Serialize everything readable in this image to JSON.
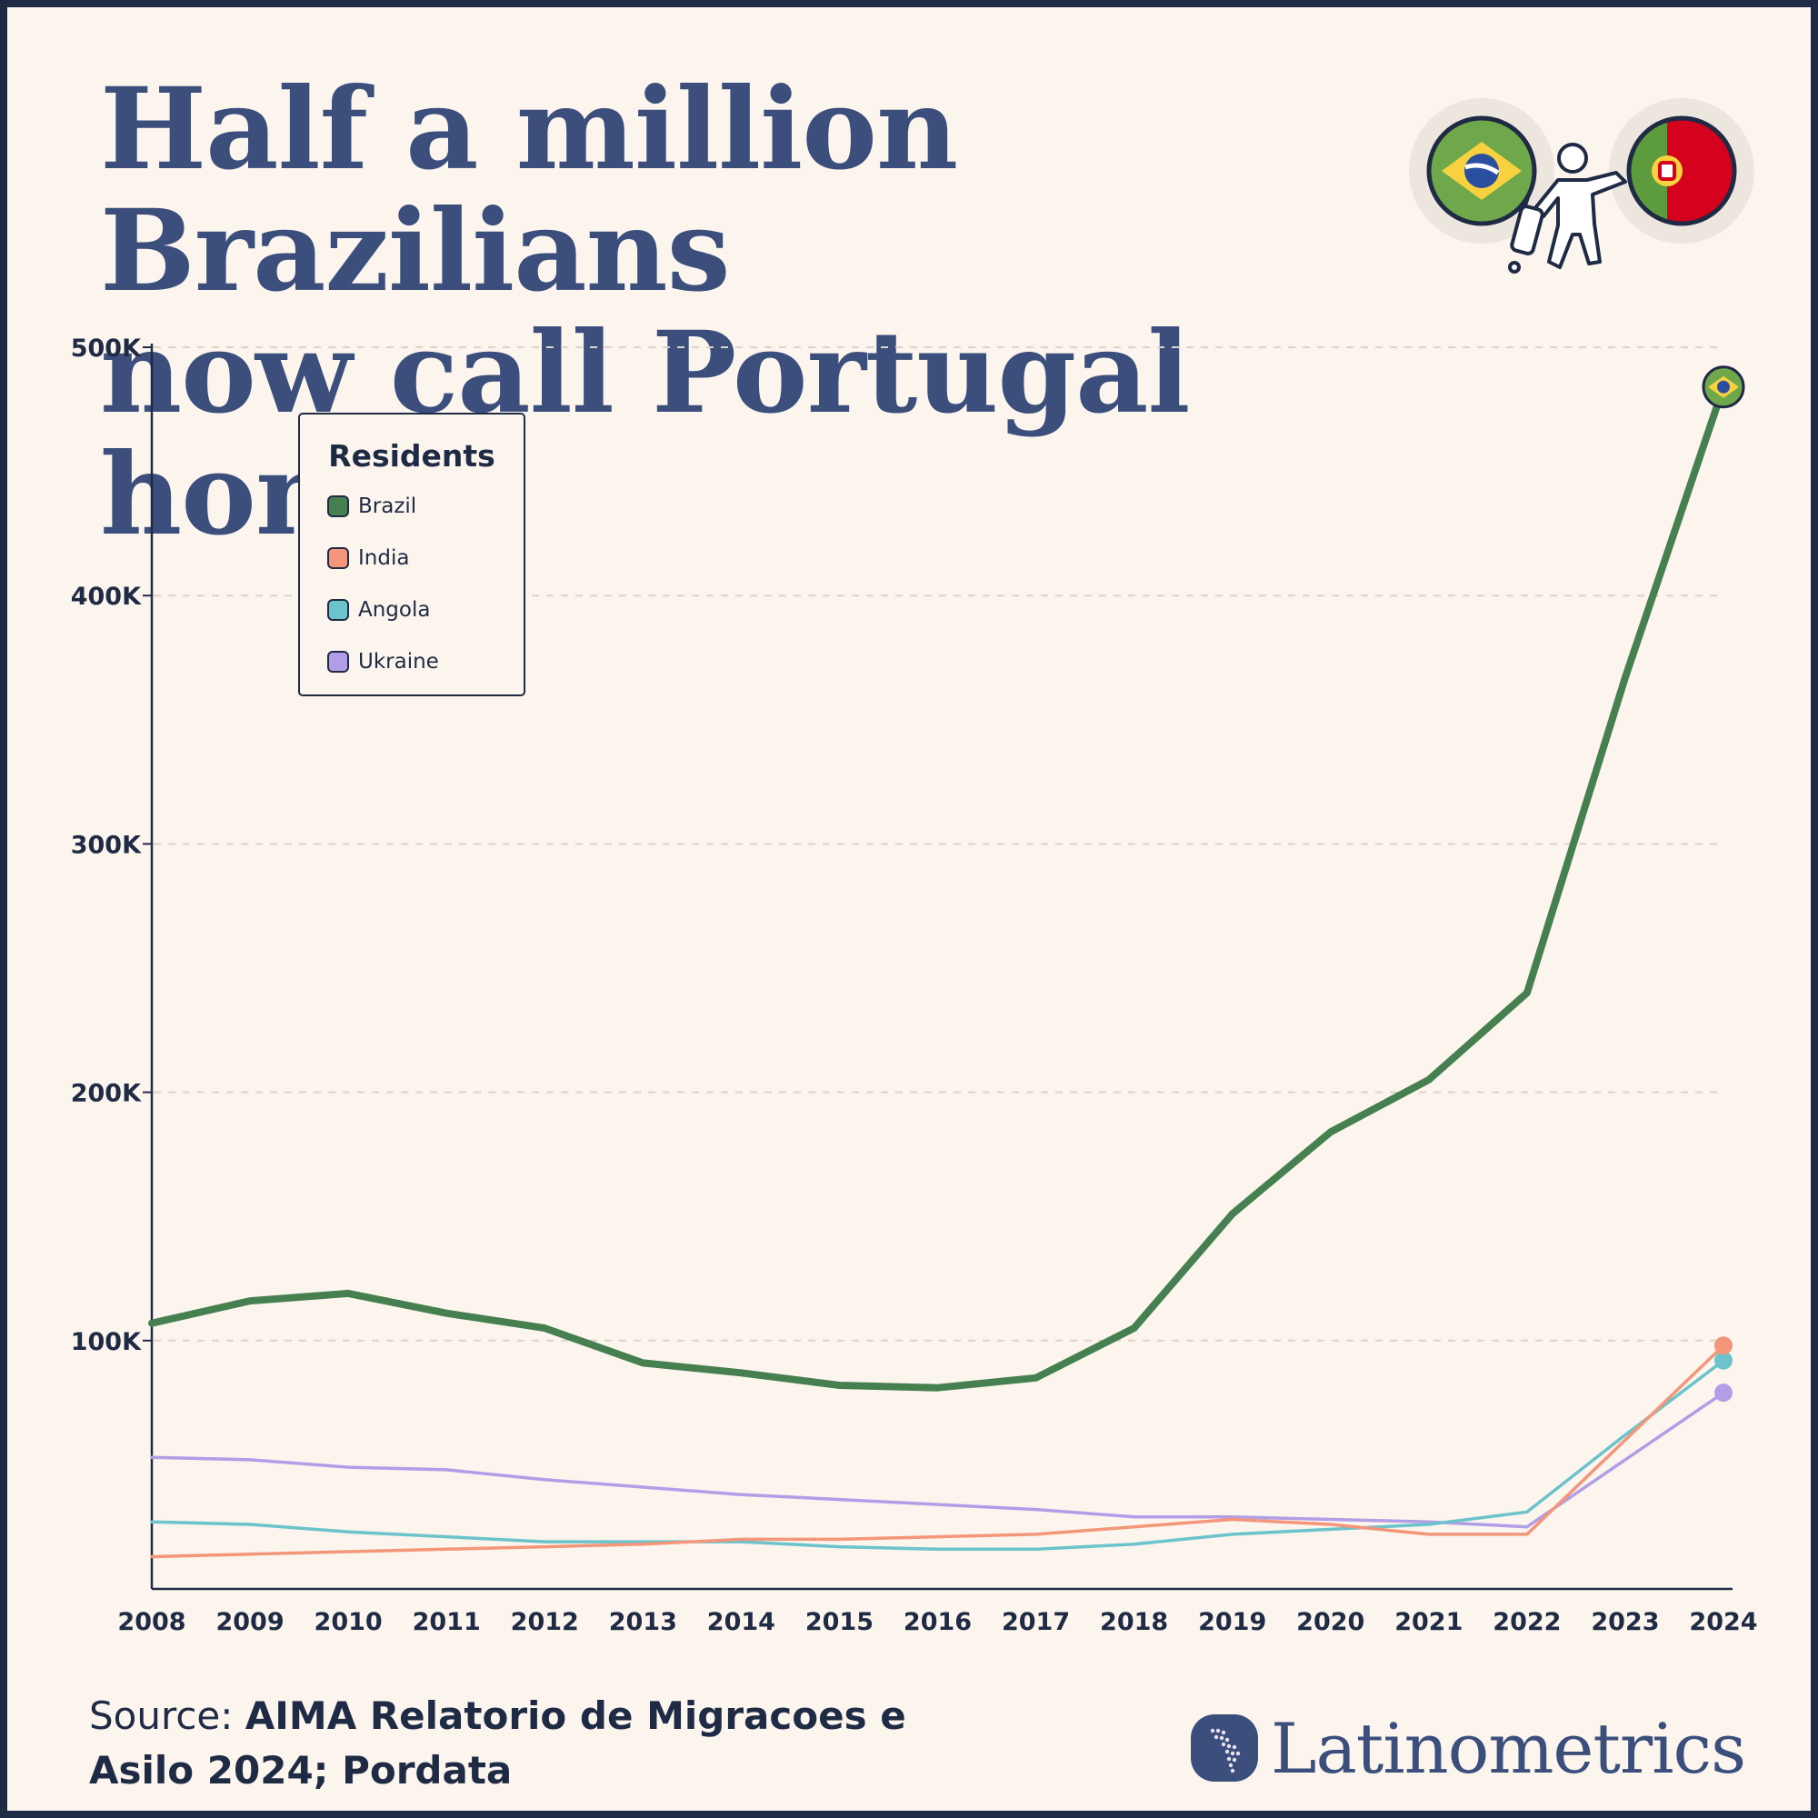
{
  "title_line1": "Half a million Brazilians",
  "title_line2": "now call Portugal home",
  "legend_title": "Residents",
  "source_prefix": "Source: ",
  "source_body": "AIMA Relatorio de Migracoes e Asilo 2024; Pordata",
  "brand": "Latinometrics",
  "icons": [
    "brazil-flag-icon",
    "traveler-icon",
    "portugal-flag-icon",
    "latinometrics-logo-icon"
  ],
  "colors": {
    "Brazil": "#478050",
    "India": "#f4967a",
    "Angola": "#6cc3cb",
    "Ukraine": "#b19ee6",
    "title": "#3b4e7c",
    "background": "#fbf5ee",
    "frame": "#1f2a44"
  },
  "chart_data": {
    "type": "line",
    "legend_title": "Residents",
    "legend_position": "top-left",
    "grid": true,
    "x": [
      2008,
      2009,
      2010,
      2011,
      2012,
      2013,
      2014,
      2015,
      2016,
      2017,
      2018,
      2019,
      2020,
      2021,
      2022,
      2023,
      2024
    ],
    "x_tick_labels": [
      "2008",
      "2009",
      "2010",
      "2011",
      "2012",
      "2013",
      "2014",
      "2015",
      "2016",
      "2017",
      "2018",
      "2019",
      "2020",
      "2021",
      "2022",
      "2023",
      "2024"
    ],
    "y_ticks": [
      100000,
      200000,
      300000,
      400000,
      500000
    ],
    "y_tick_labels": [
      "100K",
      "200K",
      "300K",
      "400K",
      "500K"
    ],
    "ylim": [
      0,
      500000
    ],
    "series": [
      {
        "name": "Brazil",
        "values": [
          107000,
          116000,
          119000,
          111000,
          105000,
          91000,
          87000,
          82000,
          81000,
          85000,
          105000,
          151000,
          184000,
          205000,
          240000,
          367000,
          484000
        ]
      },
      {
        "name": "India",
        "values": [
          13000,
          14000,
          15000,
          16000,
          17000,
          18000,
          20000,
          20000,
          21000,
          22000,
          25000,
          28000,
          26000,
          22000,
          22000,
          60000,
          98000
        ]
      },
      {
        "name": "Angola",
        "values": [
          27000,
          26000,
          23000,
          21000,
          19000,
          19000,
          19000,
          17000,
          16000,
          16000,
          18000,
          22000,
          24000,
          26000,
          31000,
          62000,
          92000
        ]
      },
      {
        "name": "Ukraine",
        "values": [
          53000,
          52000,
          49000,
          48000,
          44000,
          41000,
          38000,
          36000,
          34000,
          32000,
          29000,
          29000,
          28000,
          27000,
          25000,
          52000,
          79000
        ]
      }
    ]
  }
}
